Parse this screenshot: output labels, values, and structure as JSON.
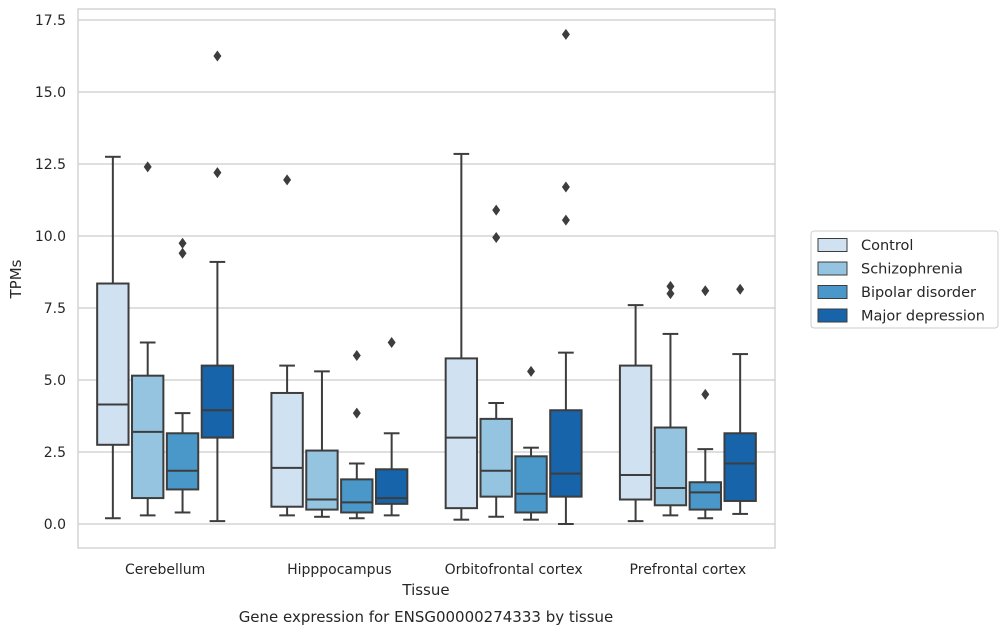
{
  "chart_data": {
    "type": "box",
    "title": "Gene expression for ENSG00000274333 by tissue",
    "xlabel": "Tissue",
    "ylabel": "TPMs",
    "ylim": [
      -0.8,
      17.9
    ],
    "yticks": [
      "0.0",
      "2.5",
      "5.0",
      "7.5",
      "10.0",
      "12.5",
      "15.0",
      "17.5"
    ],
    "ytick_values": [
      0,
      2.5,
      5,
      7.5,
      10,
      12.5,
      15,
      17.5
    ],
    "grid": "horizontal",
    "legend_position": "right",
    "categories": [
      "Cerebellum",
      "Hipppocampus",
      "Orbitofrontal cortex",
      "Prefrontal cortex"
    ],
    "series": [
      {
        "name": "Control",
        "color": "#d0e1f2",
        "boxes": [
          {
            "min": 0.2,
            "q1": 2.75,
            "median": 4.15,
            "q3": 8.35,
            "max": 12.75,
            "outliers": []
          },
          {
            "min": 0.3,
            "q1": 0.6,
            "median": 1.95,
            "q3": 4.55,
            "max": 5.5,
            "outliers": [
              11.95
            ]
          },
          {
            "min": 0.15,
            "q1": 0.55,
            "median": 3.0,
            "q3": 5.75,
            "max": 12.85,
            "outliers": []
          },
          {
            "min": 0.1,
            "q1": 0.85,
            "median": 1.7,
            "q3": 5.5,
            "max": 7.6,
            "outliers": []
          }
        ]
      },
      {
        "name": "Schizophrenia",
        "color": "#94c4df",
        "boxes": [
          {
            "min": 0.3,
            "q1": 0.9,
            "median": 3.2,
            "q3": 5.15,
            "max": 6.3,
            "outliers": [
              12.4
            ]
          },
          {
            "min": 0.25,
            "q1": 0.5,
            "median": 0.85,
            "q3": 2.55,
            "max": 5.3,
            "outliers": []
          },
          {
            "min": 0.25,
            "q1": 0.95,
            "median": 1.85,
            "q3": 3.65,
            "max": 4.2,
            "outliers": [
              9.95,
              10.9
            ]
          },
          {
            "min": 0.3,
            "q1": 0.65,
            "median": 1.25,
            "q3": 3.35,
            "max": 6.6,
            "outliers": [
              8.0,
              8.25
            ]
          }
        ]
      },
      {
        "name": "Bipolar disorder",
        "color": "#4a98c9",
        "boxes": [
          {
            "min": 0.4,
            "q1": 1.2,
            "median": 1.85,
            "q3": 3.15,
            "max": 3.85,
            "outliers": [
              9.4,
              9.75
            ]
          },
          {
            "min": 0.2,
            "q1": 0.4,
            "median": 0.75,
            "q3": 1.55,
            "max": 2.1,
            "outliers": [
              3.85,
              5.85
            ]
          },
          {
            "min": 0.15,
            "q1": 0.4,
            "median": 1.05,
            "q3": 2.35,
            "max": 2.65,
            "outliers": [
              5.3
            ]
          },
          {
            "min": 0.2,
            "q1": 0.5,
            "median": 1.1,
            "q3": 1.45,
            "max": 2.6,
            "outliers": [
              4.5,
              8.1
            ]
          }
        ]
      },
      {
        "name": "Major depression",
        "color": "#1764ab",
        "boxes": [
          {
            "min": 0.1,
            "q1": 3.0,
            "median": 3.95,
            "q3": 5.5,
            "max": 9.1,
            "outliers": [
              12.2,
              16.25
            ]
          },
          {
            "min": 0.3,
            "q1": 0.7,
            "median": 0.9,
            "q3": 1.9,
            "max": 3.15,
            "outliers": [
              6.3
            ]
          },
          {
            "min": 0.0,
            "q1": 0.95,
            "median": 1.75,
            "q3": 3.95,
            "max": 5.95,
            "outliers": [
              10.55,
              11.7,
              17.0
            ]
          },
          {
            "min": 0.35,
            "q1": 0.8,
            "median": 2.1,
            "q3": 3.15,
            "max": 5.9,
            "outliers": [
              8.15
            ]
          }
        ]
      }
    ]
  }
}
